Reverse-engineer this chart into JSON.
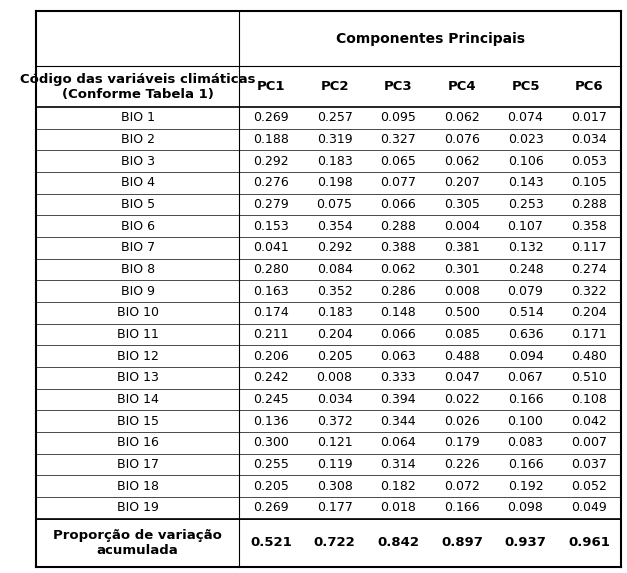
{
  "title_top": "Componentes Principais",
  "col_header_left": "Código das variáveis climáticas\n(Conforme Tabela 1)",
  "col_headers": [
    "PC1",
    "PC2",
    "PC3",
    "PC4",
    "PC5",
    "PC6"
  ],
  "row_labels": [
    "BIO 1",
    "BIO 2",
    "BIO 3",
    "BIO 4",
    "BIO 5",
    "BIO 6",
    "BIO 7",
    "BIO 8",
    "BIO 9",
    "BIO 10",
    "BIO 11",
    "BIO 12",
    "BIO 13",
    "BIO 14",
    "BIO 15",
    "BIO 16",
    "BIO 17",
    "BIO 18",
    "BIO 19"
  ],
  "data": [
    [
      0.269,
      0.257,
      0.095,
      0.062,
      0.074,
      0.017
    ],
    [
      0.188,
      0.319,
      0.327,
      0.076,
      0.023,
      0.034
    ],
    [
      0.292,
      0.183,
      0.065,
      0.062,
      0.106,
      0.053
    ],
    [
      0.276,
      0.198,
      0.077,
      0.207,
      0.143,
      0.105
    ],
    [
      0.279,
      0.075,
      0.066,
      0.305,
      0.253,
      0.288
    ],
    [
      0.153,
      0.354,
      0.288,
      0.004,
      0.107,
      0.358
    ],
    [
      0.041,
      0.292,
      0.388,
      0.381,
      0.132,
      0.117
    ],
    [
      0.28,
      0.084,
      0.062,
      0.301,
      0.248,
      0.274
    ],
    [
      0.163,
      0.352,
      0.286,
      0.008,
      0.079,
      0.322
    ],
    [
      0.174,
      0.183,
      0.148,
      0.5,
      0.514,
      0.204
    ],
    [
      0.211,
      0.204,
      0.066,
      0.085,
      0.636,
      0.171
    ],
    [
      0.206,
      0.205,
      0.063,
      0.488,
      0.094,
      0.48
    ],
    [
      0.242,
      0.008,
      0.333,
      0.047,
      0.067,
      0.51
    ],
    [
      0.245,
      0.034,
      0.394,
      0.022,
      0.166,
      0.108
    ],
    [
      0.136,
      0.372,
      0.344,
      0.026,
      0.1,
      0.042
    ],
    [
      0.3,
      0.121,
      0.064,
      0.179,
      0.083,
      0.007
    ],
    [
      0.255,
      0.119,
      0.314,
      0.226,
      0.166,
      0.037
    ],
    [
      0.205,
      0.308,
      0.182,
      0.072,
      0.192,
      0.052
    ],
    [
      0.269,
      0.177,
      0.018,
      0.166,
      0.098,
      0.049
    ]
  ],
  "footer_label": "Proporção de variação\nacumulada",
  "footer_values": [
    "0.521",
    "0.722",
    "0.842",
    "0.897",
    "0.937",
    "0.961"
  ],
  "bg_color": "#ffffff",
  "line_color": "#000000",
  "text_color": "#000000",
  "font_size_header": 9.5,
  "font_size_body": 9.0,
  "font_size_title": 10.0
}
